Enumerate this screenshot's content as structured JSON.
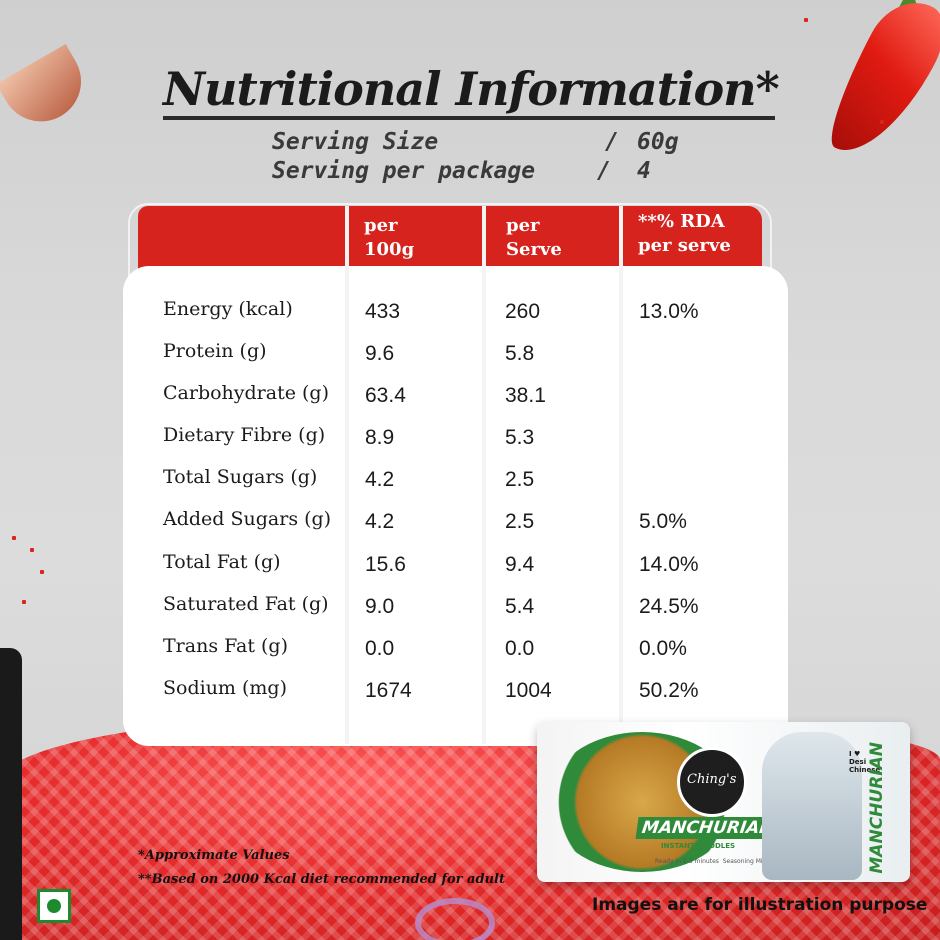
{
  "title": "Nutritional Information*",
  "serving": {
    "size_label": "Serving Size",
    "size_sep": "/",
    "size_value": "60g",
    "package_label": "Serving per package",
    "package_sep": "/",
    "package_value": "4"
  },
  "table": {
    "headers": [
      {
        "line1": "per",
        "line2": "100g"
      },
      {
        "line1": "per",
        "line2": "Serve"
      },
      {
        "line1": "**% RDA",
        "line2": "per serve"
      }
    ],
    "rows": [
      {
        "label": "Energy (kcal)",
        "per100g": "433",
        "perServe": "260",
        "rda": "13.0%"
      },
      {
        "label": "Protein (g)",
        "per100g": "9.6",
        "perServe": "5.8",
        "rda": ""
      },
      {
        "label": "Carbohydrate (g)",
        "per100g": "63.4",
        "perServe": "38.1",
        "rda": ""
      },
      {
        "label": "Dietary Fibre (g)",
        "per100g": "8.9",
        "perServe": "5.3",
        "rda": ""
      },
      {
        "label": "Total Sugars (g)",
        "per100g": "4.2",
        "perServe": "2.5",
        "rda": ""
      },
      {
        "label": "Added Sugars (g)",
        "per100g": "4.2",
        "perServe": "2.5",
        "rda": "5.0%"
      },
      {
        "label": "Total Fat (g)",
        "per100g": "15.6",
        "perServe": "9.4",
        "rda": "14.0%"
      },
      {
        "label": "Saturated Fat (g)",
        "per100g": "9.0",
        "perServe": "5.4",
        "rda": "24.5%"
      },
      {
        "label": "Trans Fat (g)",
        "per100g": "0.0",
        "perServe": "0.0",
        "rda": "0.0%"
      },
      {
        "label": "Sodium (mg)",
        "per100g": "1674",
        "perServe": "1004",
        "rda": "50.2%"
      }
    ]
  },
  "package": {
    "brand": "Ching's",
    "product": "MANCHURIAN",
    "subtitle": "INSTANT NOODLES",
    "tag1": "Ready in 2-3 minutes",
    "tag2": "Seasoning Mix Inside",
    "badge": "I ♥ Desi Chinese",
    "vertical": "MANCHURIAN"
  },
  "footnotes": {
    "approx": "*Approximate Values",
    "rda_basis": "**Based on 2000 Kcal diet recommended for adult",
    "illustration": "Images are for illustration purpose"
  },
  "colors": {
    "header_red": "#d6231e",
    "veg_green": "#1e8a2e",
    "text_dark": "#1b1b1b"
  },
  "icons": {
    "veg_mark": "veg-symbol-icon"
  }
}
